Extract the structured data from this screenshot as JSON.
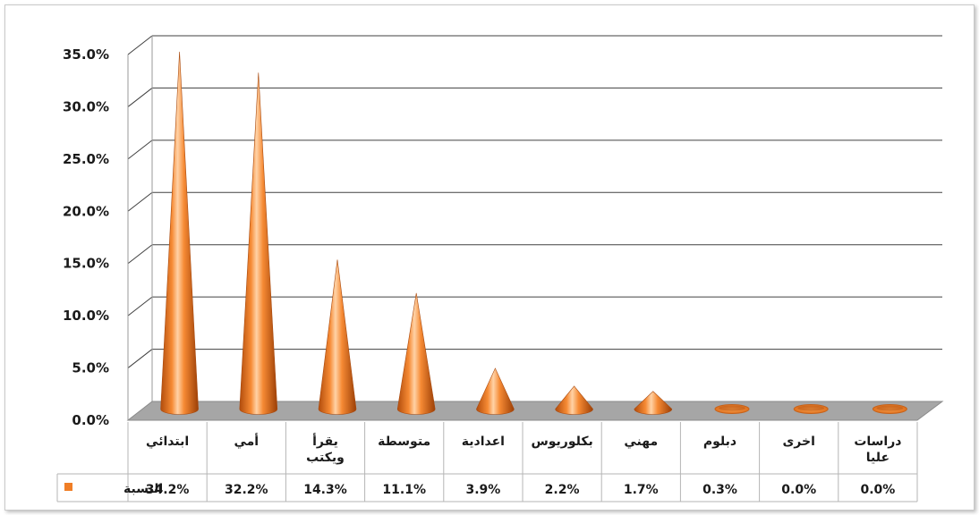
{
  "chart_data": {
    "type": "bar",
    "bar_shape": "cone-3d",
    "categories": [
      "ابتدائي",
      "أمي",
      "يقرأ ويكتب",
      "متوسطة",
      "اعدادية",
      "بكلوريوس",
      "مهني",
      "دبلوم",
      "اخرى",
      "دراسات عليا"
    ],
    "category_lines": [
      [
        "ابتدائي"
      ],
      [
        "أمي"
      ],
      [
        "يقرأ",
        "ويكتب"
      ],
      [
        "متوسطة"
      ],
      [
        "اعدادية"
      ],
      [
        "بكلوريوس"
      ],
      [
        "مهني"
      ],
      [
        "دبلوم"
      ],
      [
        "اخرى"
      ],
      [
        "دراسات",
        "عليا"
      ]
    ],
    "series": [
      {
        "name": "النسبة",
        "values": [
          34.2,
          32.2,
          14.3,
          11.1,
          3.9,
          2.2,
          1.7,
          0.3,
          0.0,
          0.0
        ],
        "labels": [
          "34.2%",
          "32.2%",
          "14.3%",
          "11.1%",
          "3.9%",
          "2.2%",
          "1.7%",
          "0.3%",
          "0.0%",
          "0.0%"
        ],
        "color": "#f07e26"
      }
    ],
    "ylim": [
      0,
      35
    ],
    "yticks": [
      0,
      5,
      10,
      15,
      20,
      25,
      30,
      35
    ],
    "ytick_labels": [
      "0.0%",
      "5.0%",
      "10.0%",
      "15.0%",
      "20.0%",
      "25.0%",
      "30.0%",
      "35.0%"
    ],
    "grid": true,
    "legend": "bottom-left, in data table",
    "data_table": true,
    "title": "",
    "xlabel": "",
    "ylabel": ""
  },
  "colors": {
    "cone": "#f07e26",
    "floor": "#a6a6a6",
    "gridline": "#404040"
  }
}
